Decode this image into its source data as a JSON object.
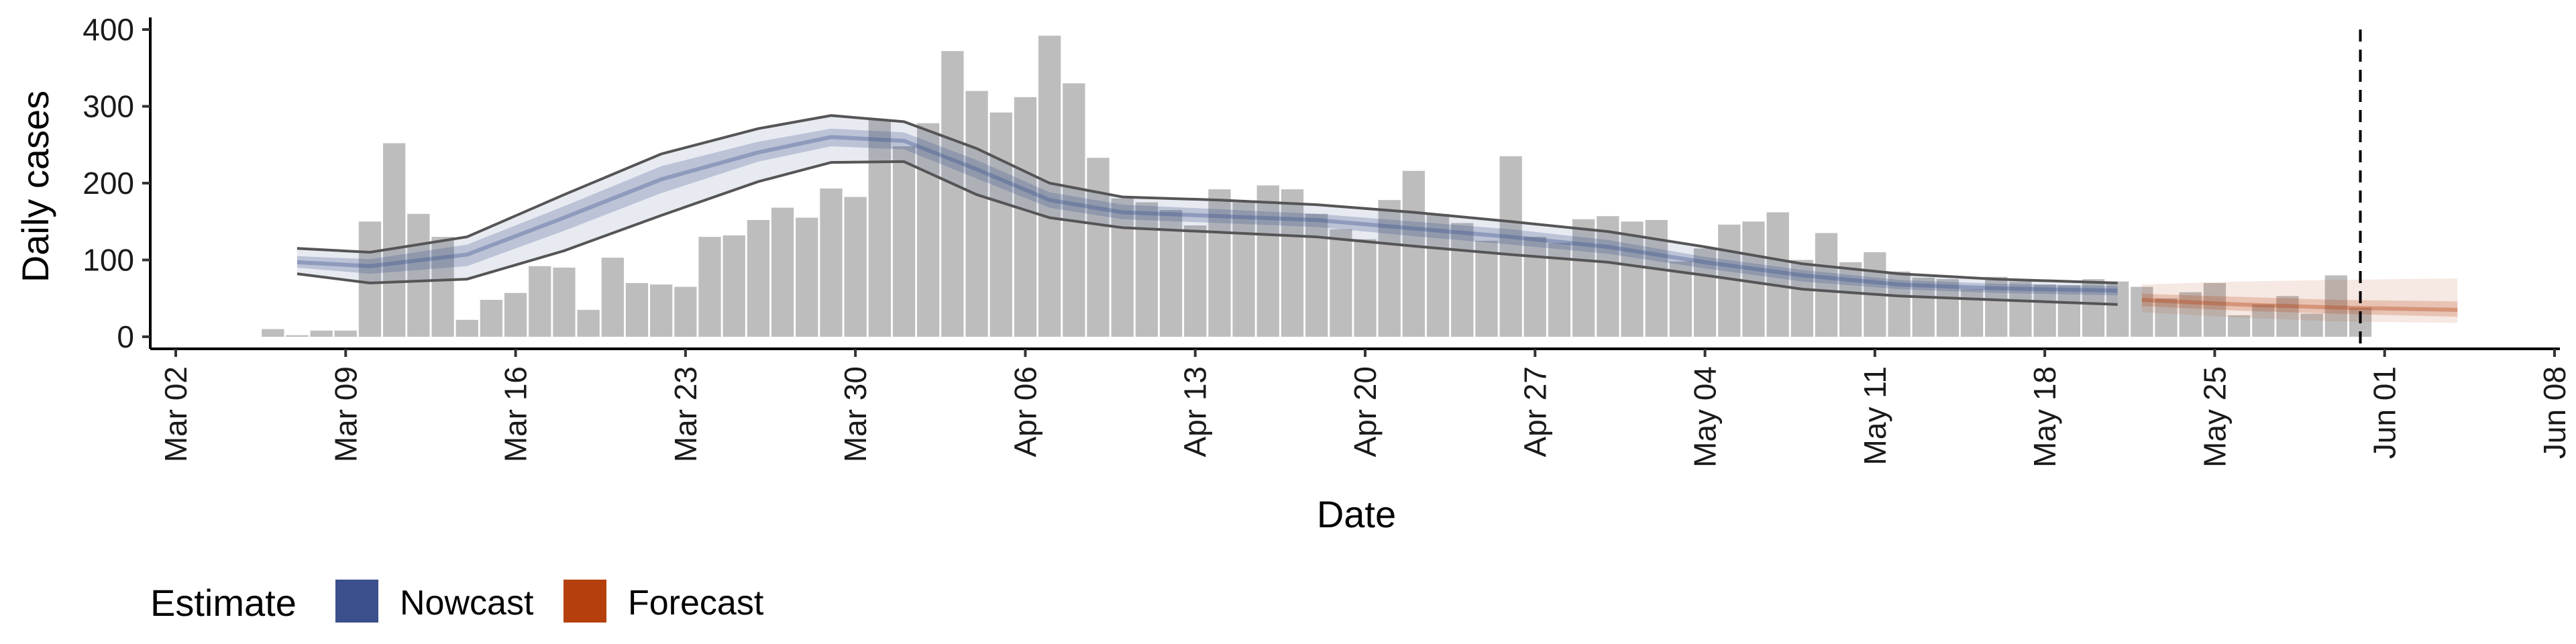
{
  "chart_data": {
    "type": "bar",
    "title": "",
    "xlabel": "Date",
    "ylabel": "Daily cases",
    "ylim": [
      0,
      400
    ],
    "y_ticks": [
      0,
      100,
      200,
      300,
      400
    ],
    "xlim": [
      "2020-03-02",
      "2020-06-08"
    ],
    "x_ticks": [
      {
        "date": "2020-03-02",
        "label": "Mar 02"
      },
      {
        "date": "2020-03-09",
        "label": "Mar 09"
      },
      {
        "date": "2020-03-16",
        "label": "Mar 16"
      },
      {
        "date": "2020-03-23",
        "label": "Mar 23"
      },
      {
        "date": "2020-03-30",
        "label": "Mar 30"
      },
      {
        "date": "2020-04-06",
        "label": "Apr 06"
      },
      {
        "date": "2020-04-13",
        "label": "Apr 13"
      },
      {
        "date": "2020-04-20",
        "label": "Apr 20"
      },
      {
        "date": "2020-04-27",
        "label": "Apr 27"
      },
      {
        "date": "2020-05-04",
        "label": "May 04"
      },
      {
        "date": "2020-05-11",
        "label": "May 11"
      },
      {
        "date": "2020-05-18",
        "label": "May 18"
      },
      {
        "date": "2020-05-25",
        "label": "May 25"
      },
      {
        "date": "2020-06-01",
        "label": "Jun 01"
      },
      {
        "date": "2020-06-08",
        "label": "Jun 08"
      }
    ],
    "grid": false,
    "bars": {
      "start_date": "2020-03-06",
      "values": [
        10,
        2,
        8,
        8,
        150,
        252,
        160,
        130,
        22,
        48,
        57,
        92,
        90,
        35,
        103,
        70,
        68,
        65,
        130,
        132,
        152,
        168,
        155,
        193,
        182,
        283,
        248,
        278,
        372,
        320,
        292,
        312,
        392,
        330,
        233,
        180,
        175,
        165,
        145,
        192,
        175,
        197,
        192,
        160,
        140,
        127,
        178,
        216,
        160,
        148,
        125,
        235,
        130,
        122,
        153,
        157,
        150,
        152,
        98,
        115,
        146,
        150,
        162,
        100,
        135,
        97,
        110,
        85,
        77,
        75,
        62,
        78,
        72,
        68,
        67,
        75,
        72,
        65,
        50,
        58,
        70,
        28,
        42,
        53,
        30,
        80,
        38
      ],
      "color": "#bdbdbd"
    },
    "nowcast": {
      "dates": [
        "2020-03-07",
        "2020-03-10",
        "2020-03-14",
        "2020-03-18",
        "2020-03-22",
        "2020-03-26",
        "2020-03-29",
        "2020-04-01",
        "2020-04-04",
        "2020-04-07",
        "2020-04-10",
        "2020-04-14",
        "2020-04-18",
        "2020-04-22",
        "2020-04-26",
        "2020-04-30",
        "2020-05-04",
        "2020-05-08",
        "2020-05-12",
        "2020-05-16",
        "2020-05-21"
      ],
      "median": [
        97,
        92,
        107,
        155,
        205,
        240,
        260,
        255,
        218,
        178,
        162,
        157,
        152,
        141,
        130,
        117,
        97,
        80,
        68,
        63,
        60
      ],
      "lower": [
        82,
        70,
        75,
        112,
        158,
        202,
        227,
        228,
        185,
        155,
        142,
        136,
        130,
        118,
        107,
        97,
        80,
        62,
        53,
        48,
        42
      ],
      "upper": [
        115,
        110,
        130,
        185,
        238,
        271,
        288,
        280,
        245,
        200,
        182,
        178,
        172,
        162,
        150,
        137,
        117,
        95,
        82,
        75,
        70
      ],
      "inner_lower": [
        90,
        82,
        92,
        138,
        187,
        228,
        248,
        244,
        206,
        168,
        153,
        148,
        143,
        131,
        120,
        108,
        89,
        72,
        62,
        57,
        54
      ],
      "inner_upper": [
        105,
        101,
        120,
        170,
        222,
        254,
        271,
        266,
        230,
        188,
        172,
        166,
        160,
        150,
        140,
        126,
        104,
        87,
        74,
        69,
        66
      ],
      "color": "#3a4f8c"
    },
    "forecast": {
      "dates": [
        "2020-05-22",
        "2020-05-26",
        "2020-05-30",
        "2020-06-04"
      ],
      "median": [
        48,
        42,
        38,
        35
      ],
      "lower": [
        32,
        25,
        20,
        18
      ],
      "upper": [
        68,
        72,
        74,
        76
      ],
      "inner_lower": [
        40,
        34,
        30,
        26
      ],
      "inner_upper": [
        56,
        52,
        48,
        46
      ],
      "color": "#b5400d"
    },
    "vline_date": "2020-05-31",
    "legend": {
      "title": "Estimate",
      "placement": "bottom-left",
      "items": [
        {
          "label": "Nowcast",
          "color": "#3a4f8c"
        },
        {
          "label": "Forecast",
          "color": "#b5400d"
        }
      ]
    }
  }
}
